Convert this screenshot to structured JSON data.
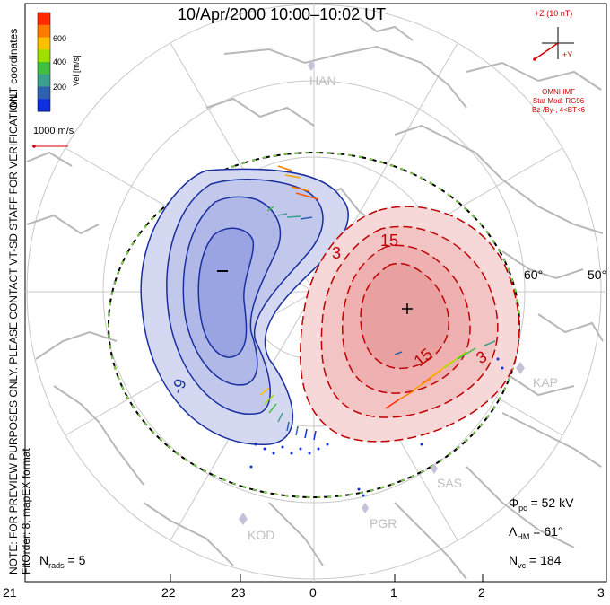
{
  "title": "10/Apr/2000 10:00–10:02 UT",
  "colorbar": {
    "ticks": [
      "600",
      "400",
      "200"
    ],
    "label": "Vel [m/s]",
    "colors": [
      "#ff2a00",
      "#ff7a00",
      "#ffc000",
      "#a0e000",
      "#40c040",
      "#3aa090",
      "#3060b0",
      "#1030e0"
    ]
  },
  "coord_label": "MLT coordinates",
  "velocity_ref": "1000 m/s",
  "side_note": {
    "line1": "NOTE: FOR PREVIEW PURPOSES ONLY. PLEASE CONTACT VT-SD STAFF FOR VERIFICATION.",
    "line2": "FitOrder: 8, mapEX format"
  },
  "imf": {
    "bz_label": "+Z (10 nT)",
    "by_label": "+Y",
    "source": "OMNI IMF",
    "model": "Stat Mod: RG96",
    "condition": "Bz-/By-, 4<BT<6"
  },
  "stats": {
    "phi_pc": {
      "symbol": "Φ",
      "sub": "pc",
      "value": "= 52 kV"
    },
    "lambda_hm": {
      "symbol": "Λ",
      "sub": "HM",
      "value": "= 61°"
    },
    "n_vc": {
      "symbol": "N",
      "sub": "vc",
      "value": "= 184"
    },
    "n_rads": {
      "symbol": "N",
      "sub": "rads",
      "value": "= 5"
    }
  },
  "stations": [
    "HAN",
    "KAP",
    "SAS",
    "PGR",
    "KOD"
  ],
  "lat_labels": [
    "60°",
    "50°"
  ],
  "mlt_labels": [
    "21",
    "22",
    "23",
    "0",
    "1",
    "2",
    "3"
  ],
  "contour_labels": {
    "neg_outer": "-9",
    "pos_inner": "15",
    "pos_mid": "15",
    "pos_outer_a": "3",
    "pos_outer_b": "3"
  },
  "extrema": {
    "min": "−",
    "max": "+"
  }
}
